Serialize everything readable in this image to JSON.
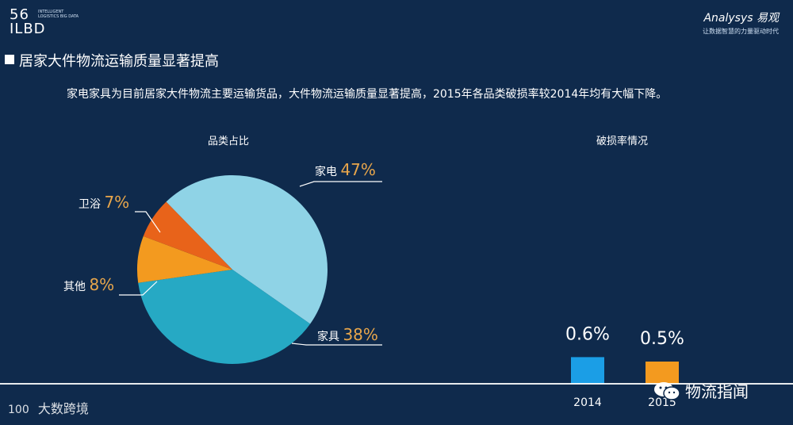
{
  "header": {
    "logo_left_main": "56",
    "logo_left_sub": "ILBD",
    "logo_left_small": "INTELLIGENT LOGISTICS BIG DATA",
    "logo_right_brand": "Analysys 易观",
    "logo_right_tagline": "让数据智慧的力量驱动时代"
  },
  "section": {
    "title": "居家大件物流运输质量显著提高",
    "description": "家电家具为目前居家大件物流主要运输货品，大件物流运输质量显著提高，2015年各品类破损率较2014年均有大幅下降。"
  },
  "chart_data": [
    {
      "type": "pie",
      "title": "品类占比",
      "labels": [
        "家电",
        "家具",
        "其他",
        "卫浴"
      ],
      "values": [
        47,
        38,
        8,
        7
      ],
      "value_labels": [
        "47%",
        "38%",
        "8%",
        "7%"
      ],
      "colors": [
        "#8fd3e6",
        "#26a9c4",
        "#f39a1f",
        "#e8631a"
      ]
    },
    {
      "type": "bar",
      "title": "破损率情况",
      "categories": [
        "2014",
        "2015"
      ],
      "values": [
        0.6,
        0.5
      ],
      "value_labels": [
        "0.6%",
        "0.5%"
      ],
      "colors": [
        "#1b9ee6",
        "#f39a1f"
      ]
    }
  ],
  "watermarks": {
    "left_mark": "100",
    "left_text": "大数跨境",
    "right_text": "物流指闻"
  },
  "colors": {
    "background": "#0f2a4c",
    "text": "#ffffff",
    "leader_line": "#ffffff"
  }
}
